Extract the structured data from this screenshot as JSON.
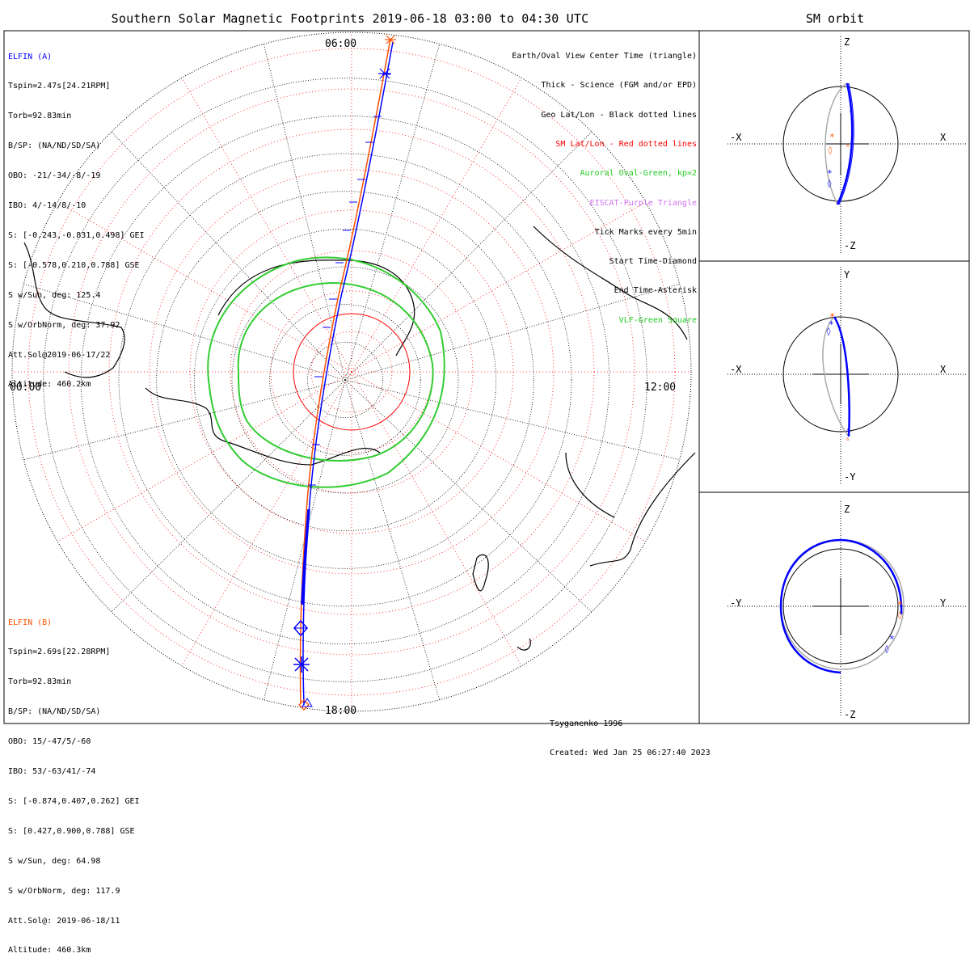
{
  "title": "Southern Solar Magnetic Footprints 2019-06-18 03:00 to 04:30 UTC",
  "sm_orbit_title": "SM orbit",
  "clock_labels": {
    "top": "06:00",
    "left": "00:00",
    "right": "12:00",
    "bottom": "18:00"
  },
  "elfin_a": {
    "name": "ELFIN (A)",
    "lines": [
      "Tspin=2.47s[24.21RPM]",
      "Torb=92.83min",
      "B/SP: (NA/ND/SD/SA)",
      "OBO: -21/-34/-8/-19",
      "IBO: 4/-14/8/-10",
      "S: [-0.243,-0.831,0.498] GEI",
      "S: [-0.578,0.210,0.788] GSE",
      "S w/Sun, deg: 125.4",
      "S w/OrbNorm, deg: 37.92",
      "Att.Sol@2019-06-17/22",
      "Altitude: 460.2km"
    ],
    "color": "#0000ff"
  },
  "elfin_b": {
    "name": "ELFIN (B)",
    "lines": [
      "Tspin=2.69s[22.28RPM]",
      "Torb=92.83min",
      "B/SP: (NA/ND/SD/SA)",
      "OBO: 15/-47/5/-60",
      "IBO: 53/-63/41/-74",
      "S: [-0.874,0.407,0.262] GEI",
      "S: [0.427,0.900,0.788] GSE",
      "S w/Sun, deg: 64.98",
      "S w/OrbNorm, deg: 117.9",
      "Att.Sol@: 2019-06-18/11",
      "Altitude: 460.3km"
    ],
    "color": "#ff4f00"
  },
  "legend": [
    {
      "text": "Earth/Oval View Center Time (triangle)",
      "color": "#000000"
    },
    {
      "text": "Thick - Science (FGM and/or EPD)",
      "color": "#000000"
    },
    {
      "text": "Geo Lat/Lon - Black dotted lines",
      "color": "#000000"
    },
    {
      "text": "SM Lat/Lon - Red dotted lines",
      "color": "#ff0000"
    },
    {
      "text": "Auroral Oval-Green, kp=2",
      "color": "#00c800"
    },
    {
      "text": "EISCAT-Purple Triangle",
      "color": "#d070f0"
    },
    {
      "text": "Tick Marks every 5min",
      "color": "#000000"
    },
    {
      "text": "Start Time-Diamond",
      "color": "#000000"
    },
    {
      "text": "End Time-Asterisk",
      "color": "#000000"
    },
    {
      "text": "VLF-Green Square",
      "color": "#00c800"
    }
  ],
  "credits": [
    "Tsyganenko-1996",
    "Created: Wed Jan 25 06:27:40 2023"
  ],
  "panels": [
    {
      "h_left": "-X",
      "h_right": "X",
      "v_top": "Z",
      "v_bottom": "-Z"
    },
    {
      "h_left": "-X",
      "h_right": "X",
      "v_top": "Y",
      "v_bottom": "-Y"
    },
    {
      "h_left": "-Y",
      "h_right": "Y",
      "v_top": "Z",
      "v_bottom": "-Z"
    }
  ],
  "colors": {
    "elfin_a": "#0000ff",
    "elfin_b": "#ff4f00",
    "sm_grid": "#ff0000",
    "oval": "#33cc33",
    "orbit_gray": "#aaaaaa"
  }
}
